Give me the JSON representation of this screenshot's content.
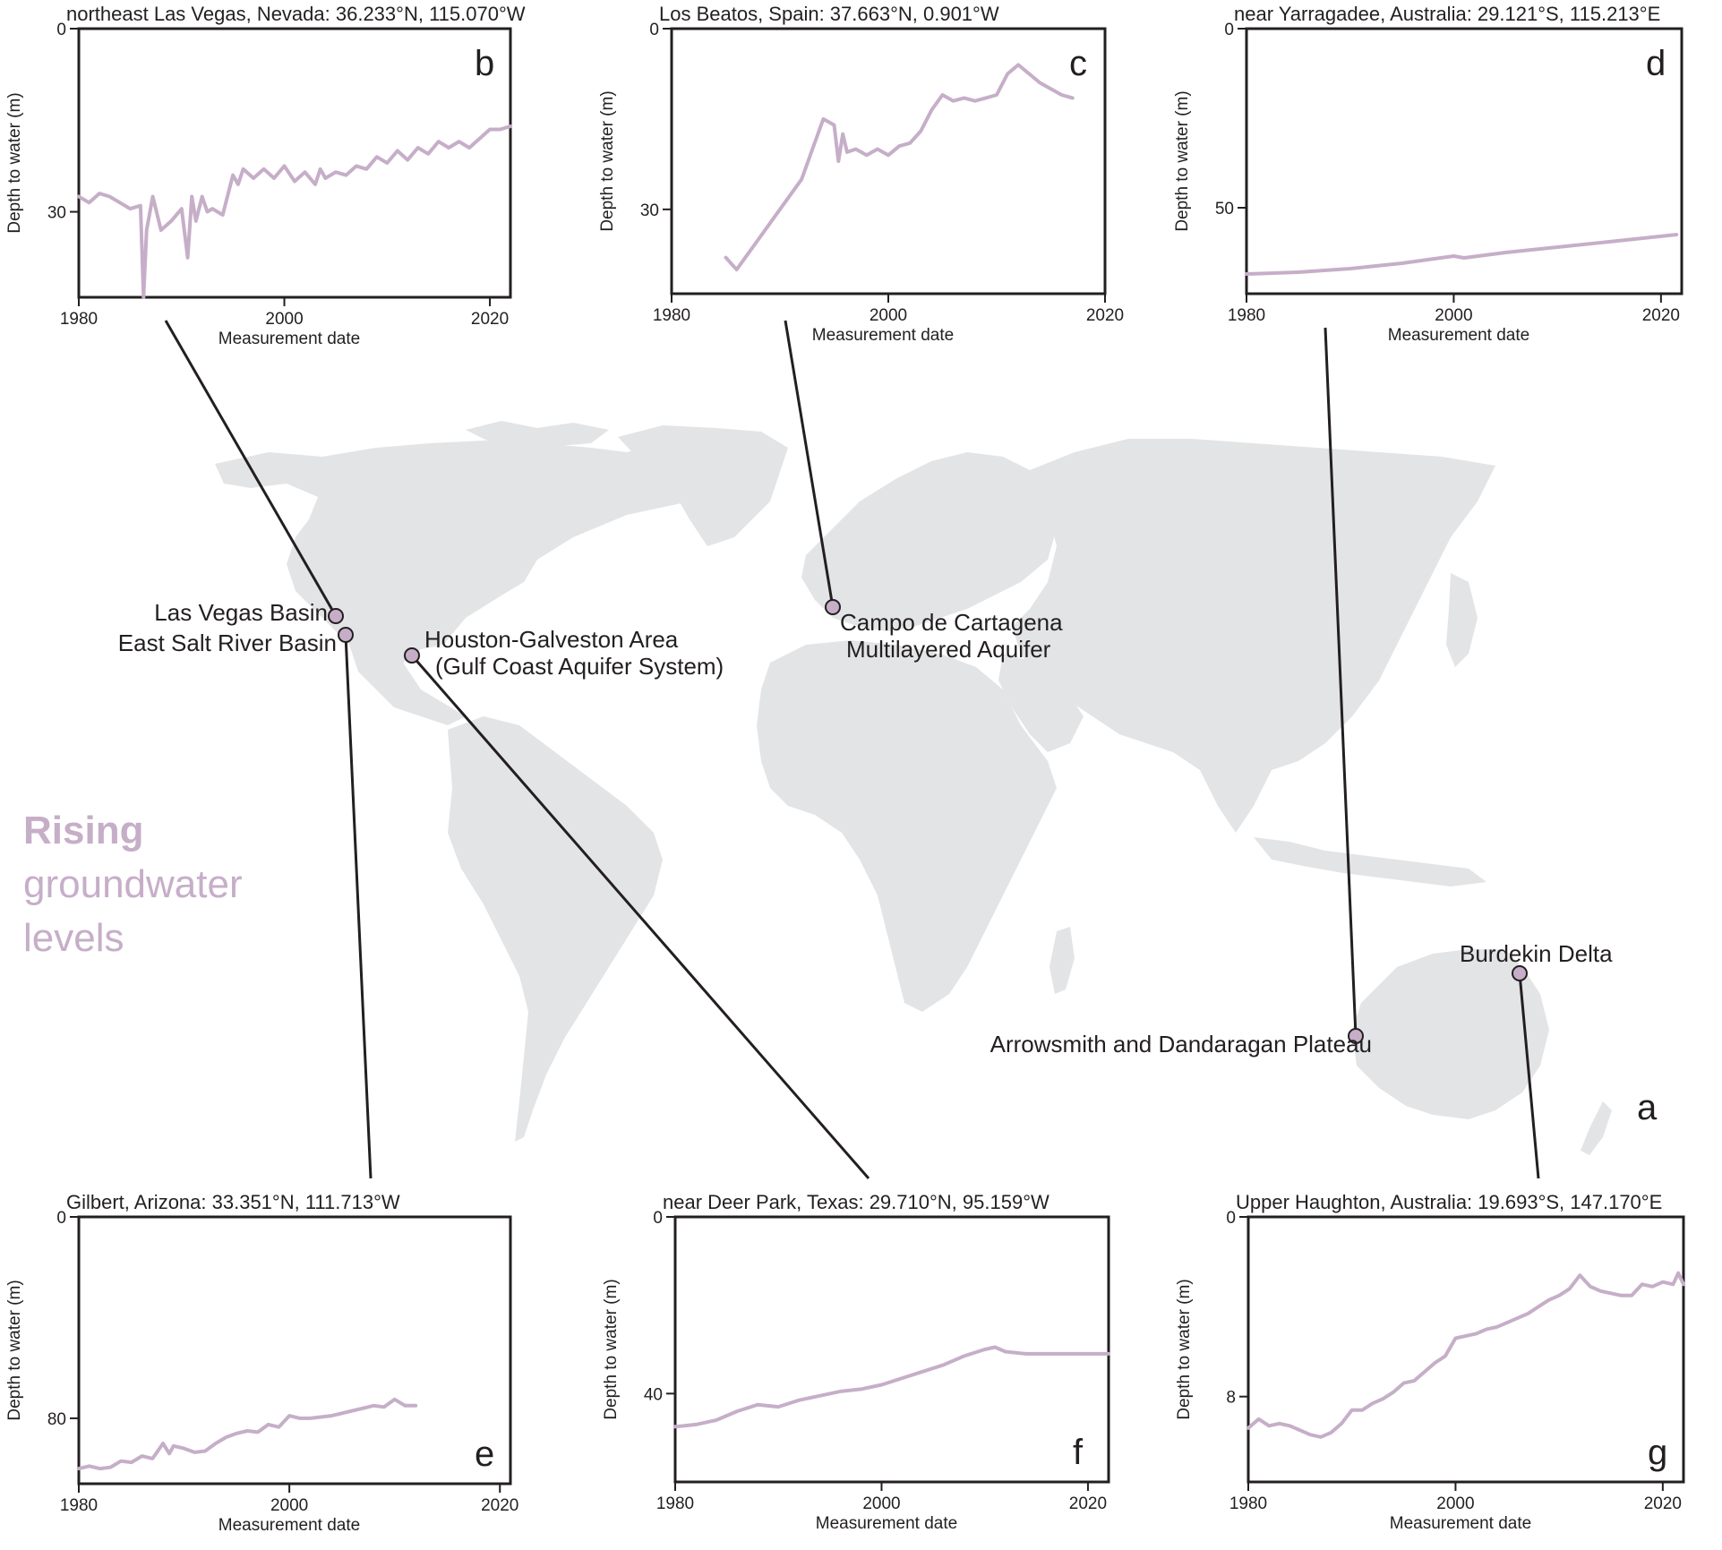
{
  "colors": {
    "series": "#c6aec8",
    "land": "#e3e4e6",
    "ink": "#231f20",
    "legend": "#c6aec8"
  },
  "legend": {
    "bold": "Rising",
    "line2": "groundwater",
    "line3": "levels"
  },
  "map": {
    "letter": "a",
    "sites": [
      {
        "id": "las-vegas",
        "label": "Las Vegas Basin"
      },
      {
        "id": "east-salt-river",
        "label": "East Salt River Basin"
      },
      {
        "id": "houston",
        "label": "Houston-Galveston Area",
        "label2": "(Gulf Coast Aquifer System)"
      },
      {
        "id": "cartagena",
        "label": "Campo de Cartagena",
        "label2": "Multilayered Aquifer"
      },
      {
        "id": "arrowsmith",
        "label": "Arrowsmith and Dandaragan Plateau"
      },
      {
        "id": "burdekin",
        "label": "Burdekin Delta"
      }
    ]
  },
  "chart_data": [
    {
      "id": "b",
      "type": "line",
      "letter": "b",
      "title": "northeast Las Vegas, Nevada: 36.233°N, 115.070°W",
      "xlabel": "Measurement date",
      "ylabel": "Depth to water (m)",
      "xlim": [
        1980,
        2022
      ],
      "ylim": [
        0,
        44
      ],
      "y_inverted": true,
      "xticks": [
        1980,
        2000,
        2020
      ],
      "yticks": [
        0,
        30
      ],
      "x": [
        1980,
        1981,
        1982,
        1983,
        1984,
        1985,
        1986,
        1986.3,
        1986.6,
        1987.2,
        1988,
        1989,
        1990,
        1990.6,
        1991,
        1991.4,
        1992,
        1992.5,
        1993,
        1994,
        1995,
        1995.5,
        1996,
        1997,
        1998,
        1999,
        2000,
        2001,
        2002,
        2003,
        2003.5,
        2004,
        2005,
        2006,
        2007,
        2008,
        2009,
        2010,
        2011,
        2012,
        2013,
        2014,
        2015,
        2016,
        2017,
        2018,
        2019,
        2020,
        2021,
        2022
      ],
      "y": [
        27.5,
        28.5,
        27.0,
        27.5,
        28.5,
        29.5,
        29.0,
        44.0,
        33.0,
        27.5,
        33.0,
        31.5,
        29.5,
        37.5,
        27.5,
        31.5,
        27.5,
        30.0,
        29.5,
        30.5,
        24.0,
        25.5,
        23.0,
        24.5,
        23.0,
        24.5,
        22.5,
        25.0,
        23.5,
        25.5,
        23.0,
        24.5,
        23.5,
        24.0,
        22.5,
        23.0,
        21.0,
        22.0,
        20.0,
        21.5,
        19.5,
        20.5,
        18.5,
        19.5,
        18.5,
        19.5,
        18.0,
        16.5,
        16.5,
        16.0
      ]
    },
    {
      "id": "c",
      "type": "line",
      "letter": "c",
      "title": "Los Beatos, Spain: 37.663°N, 0.901°W",
      "xlabel": "Measurement date",
      "ylabel": "Depth to water (m)",
      "xlim": [
        1980,
        2020
      ],
      "ylim": [
        0,
        44
      ],
      "y_inverted": true,
      "xticks": [
        1980,
        2000,
        2020
      ],
      "yticks": [
        0,
        30
      ],
      "x": [
        1985,
        1986,
        1988,
        1990,
        1992,
        1993,
        1994,
        1995,
        1995.4,
        1995.8,
        1996.2,
        1997,
        1998,
        1999,
        2000,
        2001,
        2002,
        2003,
        2004,
        2005,
        2006,
        2007,
        2008,
        2009,
        2010,
        2011,
        2012,
        2013,
        2014,
        2015,
        2016,
        2017
      ],
      "y": [
        38.0,
        40.0,
        35.0,
        30.0,
        25.0,
        20.0,
        15.0,
        16.0,
        22.0,
        17.5,
        20.5,
        20.0,
        21.0,
        20.0,
        21.0,
        19.5,
        19.0,
        17.0,
        13.5,
        11.0,
        12.0,
        11.5,
        12.0,
        11.5,
        11.0,
        7.5,
        6.0,
        7.5,
        9.0,
        10.0,
        11.0,
        11.5
      ]
    },
    {
      "id": "d",
      "type": "line",
      "letter": "d",
      "title": "near Yarragadee, Australia: 29.121°S, 115.213°E",
      "xlabel": "Measurement date",
      "ylabel": "Depth to water (m)",
      "xlim": [
        1980,
        2022
      ],
      "ylim": [
        0,
        74
      ],
      "y_inverted": true,
      "xticks": [
        1980,
        2000,
        2020
      ],
      "yticks": [
        0,
        50
      ],
      "x": [
        1980,
        1985,
        1990,
        1995,
        2000,
        2001,
        2005,
        2010,
        2015,
        2021.5
      ],
      "y": [
        68.5,
        68.0,
        67.0,
        65.5,
        63.5,
        64.0,
        62.5,
        61.0,
        59.5,
        57.5
      ]
    },
    {
      "id": "e",
      "type": "line",
      "letter": "e",
      "title": "Gilbert, Arizona: 33.351°N, 111.713°W",
      "xlabel": "Measurement date",
      "ylabel": "Depth to water (m)",
      "xlim": [
        1980,
        2021
      ],
      "ylim": [
        0,
        106
      ],
      "y_inverted": true,
      "xticks": [
        1980,
        2000,
        2020
      ],
      "yticks": [
        0,
        80
      ],
      "x": [
        1980,
        1981,
        1982,
        1983,
        1984,
        1985,
        1986,
        1987,
        1987.5,
        1988,
        1988.6,
        1989,
        1990,
        1991,
        1992,
        1993,
        1994,
        1995,
        1996,
        1997,
        1998,
        1999,
        2000,
        2001,
        2002,
        2003,
        2004,
        2005,
        2006,
        2007,
        2008,
        2009,
        2010,
        2011,
        2012
      ],
      "y": [
        100.0,
        99.0,
        100.0,
        99.5,
        97.0,
        97.5,
        95.0,
        96.0,
        93.0,
        90.0,
        94.0,
        91.0,
        92.0,
        93.5,
        93.0,
        90.0,
        87.5,
        86.0,
        85.0,
        85.5,
        82.5,
        83.5,
        79.0,
        80.0,
        80.0,
        79.5,
        79.0,
        78.0,
        77.0,
        76.0,
        75.0,
        75.5,
        72.5,
        75.0,
        75.0
      ]
    },
    {
      "id": "f",
      "type": "line",
      "letter": "f",
      "title": "near Deer Park, Texas: 29.710°N, 95.159°W",
      "xlabel": "Measurement date",
      "ylabel": "Depth to water (m)",
      "xlim": [
        1980,
        2022
      ],
      "ylim": [
        0,
        60
      ],
      "y_inverted": true,
      "xticks": [
        1980,
        2000,
        2020
      ],
      "yticks": [
        0,
        40
      ],
      "x": [
        1980,
        1982,
        1984,
        1986,
        1988,
        1990,
        1992,
        1994,
        1996,
        1998,
        2000,
        2002,
        2004,
        2006,
        2008,
        2010,
        2011,
        2012,
        2014,
        2016,
        2018,
        2020,
        2022
      ],
      "y": [
        47.5,
        47.0,
        46.0,
        44.0,
        42.5,
        43.0,
        41.5,
        40.5,
        39.5,
        39.0,
        38.0,
        36.5,
        35.0,
        33.5,
        31.5,
        30.0,
        29.5,
        30.5,
        31.0,
        31.0,
        31.0,
        31.0,
        31.0
      ]
    },
    {
      "id": "g",
      "type": "line",
      "letter": "g",
      "title": "Upper Haughton, Australia: 19.693°S, 147.170°E",
      "xlabel": "Measurement date",
      "ylabel": "Depth to water (m)",
      "xlim": [
        1980,
        2022
      ],
      "ylim": [
        0,
        11.8
      ],
      "y_inverted": true,
      "xticks": [
        1980,
        2000,
        2020
      ],
      "yticks": [
        0,
        8
      ],
      "x": [
        1980,
        1981,
        1982,
        1983,
        1984,
        1985,
        1986,
        1987,
        1988,
        1989,
        1990,
        1991,
        1992,
        1993,
        1994,
        1995,
        1996,
        1997,
        1998,
        1999,
        2000,
        2001,
        2002,
        2003,
        2004,
        2005,
        2006,
        2007,
        2008,
        2009,
        2010,
        2011,
        2012,
        2013,
        2014,
        2015,
        2016,
        2017,
        2018,
        2019,
        2020,
        2021,
        2021.5,
        2022
      ],
      "y": [
        9.4,
        9.0,
        9.3,
        9.2,
        9.3,
        9.5,
        9.7,
        9.8,
        9.6,
        9.2,
        8.6,
        8.6,
        8.3,
        8.1,
        7.8,
        7.4,
        7.3,
        6.9,
        6.5,
        6.2,
        5.4,
        5.3,
        5.2,
        5.0,
        4.9,
        4.7,
        4.5,
        4.3,
        4.0,
        3.7,
        3.5,
        3.2,
        2.6,
        3.1,
        3.3,
        3.4,
        3.5,
        3.5,
        3.0,
        3.1,
        2.9,
        3.0,
        2.5,
        3.0
      ]
    }
  ]
}
